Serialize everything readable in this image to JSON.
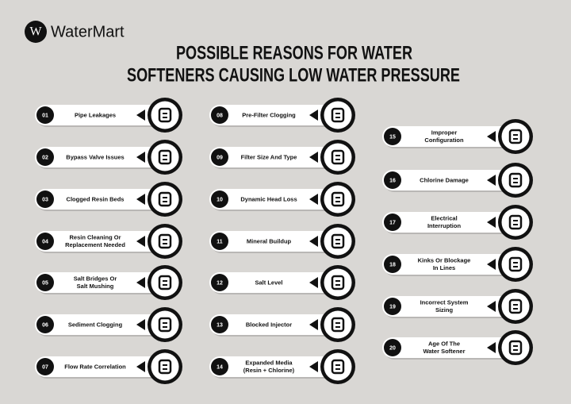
{
  "brand": {
    "letter": "W",
    "name": "WaterMart"
  },
  "title": [
    "POSSIBLE REASONS FOR WATER",
    "SOFTENERS CAUSING LOW WATER PRESSURE"
  ],
  "columns": [
    [
      {
        "num": "01",
        "lines": [
          "Pipe Leakages"
        ]
      },
      {
        "num": "02",
        "lines": [
          "Bypass Valve Issues"
        ]
      },
      {
        "num": "03",
        "lines": [
          "Clogged Resin Beds"
        ]
      },
      {
        "num": "04",
        "lines": [
          "Resin Cleaning Or",
          "Replacement Needed"
        ]
      },
      {
        "num": "05",
        "lines": [
          "Salt Bridges Or",
          "Salt Mushing"
        ]
      },
      {
        "num": "06",
        "lines": [
          "Sediment Clogging"
        ]
      },
      {
        "num": "07",
        "lines": [
          "Flow Rate Correlation"
        ]
      }
    ],
    [
      {
        "num": "08",
        "lines": [
          "Pre-Filter Clogging"
        ]
      },
      {
        "num": "09",
        "lines": [
          "Filter Size And Type"
        ]
      },
      {
        "num": "10",
        "lines": [
          "Dynamic Head Loss"
        ]
      },
      {
        "num": "11",
        "lines": [
          "Mineral Buildup"
        ]
      },
      {
        "num": "12",
        "lines": [
          "Salt Level"
        ]
      },
      {
        "num": "13",
        "lines": [
          "Blocked Injector"
        ]
      },
      {
        "num": "14",
        "lines": [
          "Expanded Media",
          "(Resin + Chlorine)"
        ]
      }
    ],
    [
      {
        "num": "15",
        "lines": [
          "Improper",
          "Configuration"
        ]
      },
      {
        "num": "16",
        "lines": [
          "Chlorine Damage"
        ]
      },
      {
        "num": "17",
        "lines": [
          "Electrical",
          "Interruption"
        ]
      },
      {
        "num": "18",
        "lines": [
          "Kinks Or Blockage",
          "In Lines"
        ]
      },
      {
        "num": "19",
        "lines": [
          "Incorrect System",
          "Sizing"
        ]
      },
      {
        "num": "20",
        "lines": [
          "Age Of The",
          "Water Softener"
        ]
      }
    ]
  ]
}
